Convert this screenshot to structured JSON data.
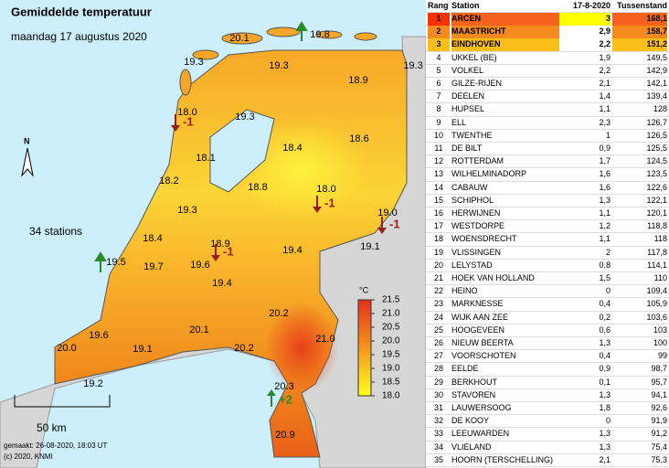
{
  "map": {
    "title": "Gemiddelde temperatuur",
    "subtitle": "maandag 17 augustus 2020",
    "station_count": "34 stations",
    "north": "N",
    "scale": "50 km",
    "made": "gemaakt: 26-08-2020, 18:03 UT",
    "copyright": "(c) 2020, KNMI",
    "legend": {
      "unit": "°C",
      "ticks": [
        "21.5",
        "21.0",
        "20.5",
        "20.0",
        "19.5",
        "19.0",
        "18.5",
        "18.0"
      ]
    },
    "values": [
      "20.1",
      "19.8",
      "19.3",
      "19.3",
      "18.9",
      "19.3",
      "18.0",
      "19.3",
      "18.6",
      "18.4",
      "18.1",
      "18.2",
      "18.8",
      "18.0",
      "19.3",
      "19.0",
      "18.4",
      "18.9",
      "19.4",
      "19.1",
      "19.5",
      "19.7",
      "19.6",
      "19.4",
      "20.2",
      "20.1",
      "21.0",
      "19.6",
      "19.1",
      "20.0",
      "20.2",
      "19.2",
      "20.3",
      "20.9"
    ],
    "changes": [
      {
        "label": "-1",
        "dir": "down"
      },
      {
        "label": "-1",
        "dir": "down"
      },
      {
        "label": "-1",
        "dir": "down"
      },
      {
        "label": "-1",
        "dir": "down"
      },
      {
        "label": "+2",
        "dir": "up"
      }
    ]
  },
  "table": {
    "header": [
      "Rang",
      "Station",
      "17-8-2020",
      "Tussenstand"
    ],
    "rows": [
      [
        "1",
        "ARCEN",
        "3",
        "168,1"
      ],
      [
        "2",
        "MAASTRICHT",
        "2,9",
        "158,7"
      ],
      [
        "3",
        "EINDHOVEN",
        "2,2",
        "151,2"
      ],
      [
        "4",
        "UKKEL (BE)",
        "1,9",
        "149,5"
      ],
      [
        "5",
        "VOLKEL",
        "2,2",
        "142,9"
      ],
      [
        "6",
        "GILZE-RIJEN",
        "2,1",
        "142,1"
      ],
      [
        "7",
        "DEELEN",
        "1,4",
        "139,4"
      ],
      [
        "8",
        "HUPSEL",
        "1,1",
        "128"
      ],
      [
        "9",
        "ELL",
        "2,3",
        "126,7"
      ],
      [
        "10",
        "TWENTHE",
        "1",
        "126,5"
      ],
      [
        "11",
        "DE BILT",
        "0,9",
        "125,5"
      ],
      [
        "12",
        "ROTTERDAM",
        "1,7",
        "124,5"
      ],
      [
        "13",
        "WILHELMINADORP",
        "1,6",
        "123,5"
      ],
      [
        "14",
        "CABAUW",
        "1,6",
        "122,6"
      ],
      [
        "15",
        "SCHIPHOL",
        "1,3",
        "122,1"
      ],
      [
        "16",
        "HERWIJNEN",
        "1,1",
        "120,1"
      ],
      [
        "17",
        "WESTDORPE",
        "1,2",
        "118,8"
      ],
      [
        "18",
        "WOENSDRECHT",
        "1,1",
        "118"
      ],
      [
        "19",
        "VLISSINGEN",
        "2",
        "117,8"
      ],
      [
        "20",
        "LELYSTAD",
        "0,8",
        "114,1"
      ],
      [
        "21",
        "HOEK VAN HOLLAND",
        "1,5",
        "110"
      ],
      [
        "22",
        "HEINO",
        "0",
        "109,4"
      ],
      [
        "23",
        "MARKNESSE",
        "0,4",
        "105,9"
      ],
      [
        "24",
        "WIJK AAN ZEE",
        "0,2",
        "103,6"
      ],
      [
        "25",
        "HOOGEVEEN",
        "0,6",
        "103"
      ],
      [
        "26",
        "NIEUW BEERTA",
        "1,3",
        "100"
      ],
      [
        "27",
        "VOORSCHOTEN",
        "0,4",
        "99"
      ],
      [
        "28",
        "EELDE",
        "0,9",
        "98,7"
      ],
      [
        "29",
        "BERKHOUT",
        "0,1",
        "95,7"
      ],
      [
        "30",
        "STAVOREN",
        "1,3",
        "94,1"
      ],
      [
        "31",
        "LAUWERSOOG",
        "1,8",
        "92,6"
      ],
      [
        "32",
        "DE KOOY",
        "0",
        "91,9"
      ],
      [
        "33",
        "LEEUWARDEN",
        "1,3",
        "91,2"
      ],
      [
        "34",
        "VLIELAND",
        "1,3",
        "75,4"
      ],
      [
        "35",
        "HOORN (TERSCHELLING)",
        "2,1",
        "75,3"
      ]
    ]
  }
}
